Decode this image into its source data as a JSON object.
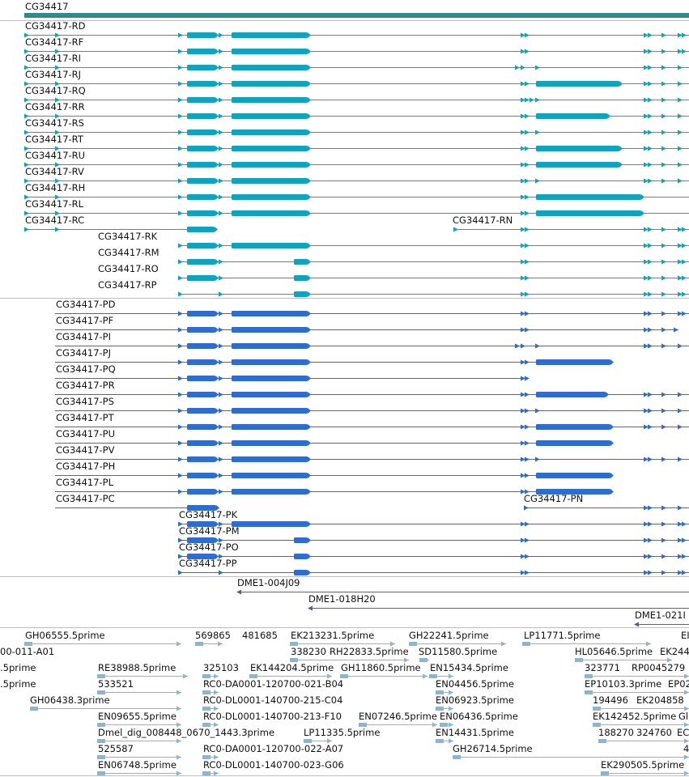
{
  "colors": {
    "gene": "#2f8a8a",
    "transcript": "#0fa3bf",
    "protein": "#2e6cd1",
    "cdna": "#6a4fa3",
    "est": "#86b6da",
    "divider": "#bfbfbf"
  },
  "gene": {
    "label": "CG34417"
  },
  "transcripts": [
    {
      "label": "CG34417-RD"
    },
    {
      "label": "CG34417-RF"
    },
    {
      "label": "CG34417-RI"
    },
    {
      "label": "CG34417-RJ"
    },
    {
      "label": "CG34417-RQ"
    },
    {
      "label": "CG34417-RR"
    },
    {
      "label": "CG34417-RS"
    },
    {
      "label": "CG34417-RT"
    },
    {
      "label": "CG34417-RU"
    },
    {
      "label": "CG34417-RV"
    },
    {
      "label": "CG34417-RH"
    },
    {
      "label": "CG34417-RL"
    },
    {
      "label": "CG34417-RC"
    },
    {
      "label": "CG34417-RN"
    },
    {
      "label": "CG34417-RK"
    },
    {
      "label": "CG34417-RM"
    },
    {
      "label": "CG34417-RO"
    },
    {
      "label": "CG34417-RP"
    }
  ],
  "proteins": [
    {
      "label": "CG34417-PD"
    },
    {
      "label": "CG34417-PF"
    },
    {
      "label": "CG34417-PI"
    },
    {
      "label": "CG34417-PJ"
    },
    {
      "label": "CG34417-PQ"
    },
    {
      "label": "CG34417-PR"
    },
    {
      "label": "CG34417-PS"
    },
    {
      "label": "CG34417-PT"
    },
    {
      "label": "CG34417-PU"
    },
    {
      "label": "CG34417-PV"
    },
    {
      "label": "CG34417-PH"
    },
    {
      "label": "CG34417-PL"
    },
    {
      "label": "CG34417-PC"
    },
    {
      "label": "CG34417-PN"
    },
    {
      "label": "CG34417-PK"
    },
    {
      "label": "CG34417-PM"
    },
    {
      "label": "CG34417-PO"
    },
    {
      "label": "CG34417-PP"
    }
  ],
  "cdna_clones": [
    {
      "label": "DME1-004J09"
    },
    {
      "label": "DME1-018H20"
    },
    {
      "label": "DME1-021I"
    }
  ],
  "ests": [
    {
      "label": "GH06555.5prime"
    },
    {
      "label": "569865"
    },
    {
      "label": "481685"
    },
    {
      "label": "EK213231.5prime"
    },
    {
      "label": "GH22241.5prime"
    },
    {
      "label": "LP11771.5prime"
    },
    {
      "label": "EI"
    },
    {
      "label": "00-011-A01"
    },
    {
      "label": "338230"
    },
    {
      "label": "RH22833.5prime"
    },
    {
      "label": "SD11580.5prime"
    },
    {
      "label": "HL05646.5prime"
    },
    {
      "label": "EK244"
    },
    {
      "label": ".5prime"
    },
    {
      "label": "RE38988.5prime"
    },
    {
      "label": "325103"
    },
    {
      "label": "EK144204.5prime"
    },
    {
      "label": "GH11860.5prime"
    },
    {
      "label": "EN15434.5prime"
    },
    {
      "label": "323771"
    },
    {
      "label": "RP0045279"
    },
    {
      "label": ".5prime"
    },
    {
      "label": "533521"
    },
    {
      "label": "RC0-DA0001-120700-021-B04"
    },
    {
      "label": "EN04456.5prime"
    },
    {
      "label": "EP10103.3prime"
    },
    {
      "label": "EP02"
    },
    {
      "label": "GH06438.3prime"
    },
    {
      "label": "RC0-DL0001-140700-215-C04"
    },
    {
      "label": "EN06923.5prime"
    },
    {
      "label": "194496"
    },
    {
      "label": "EK204858"
    },
    {
      "label": "EN09655.5prime"
    },
    {
      "label": "RC0-DL0001-140700-213-F10"
    },
    {
      "label": "EN07246.5prime"
    },
    {
      "label": "EN06436.5prime"
    },
    {
      "label": "EK142452.5prime"
    },
    {
      "label": "Gl"
    },
    {
      "label": "Dmel_dig_008448_0670_1443.3prime"
    },
    {
      "label": "LP11335.5prime"
    },
    {
      "label": "EN14431.5prime"
    },
    {
      "label": "188270"
    },
    {
      "label": "324760"
    },
    {
      "label": "EC"
    },
    {
      "label": "525587"
    },
    {
      "label": "RC0-DA0001-120700-022-A07"
    },
    {
      "label": "GH26714.5prime"
    },
    {
      "label": "4"
    },
    {
      "label": "EN06748.5prime"
    },
    {
      "label": "RC0-DL0001-140700-023-G06"
    },
    {
      "label": "EK290505.5prime"
    }
  ]
}
